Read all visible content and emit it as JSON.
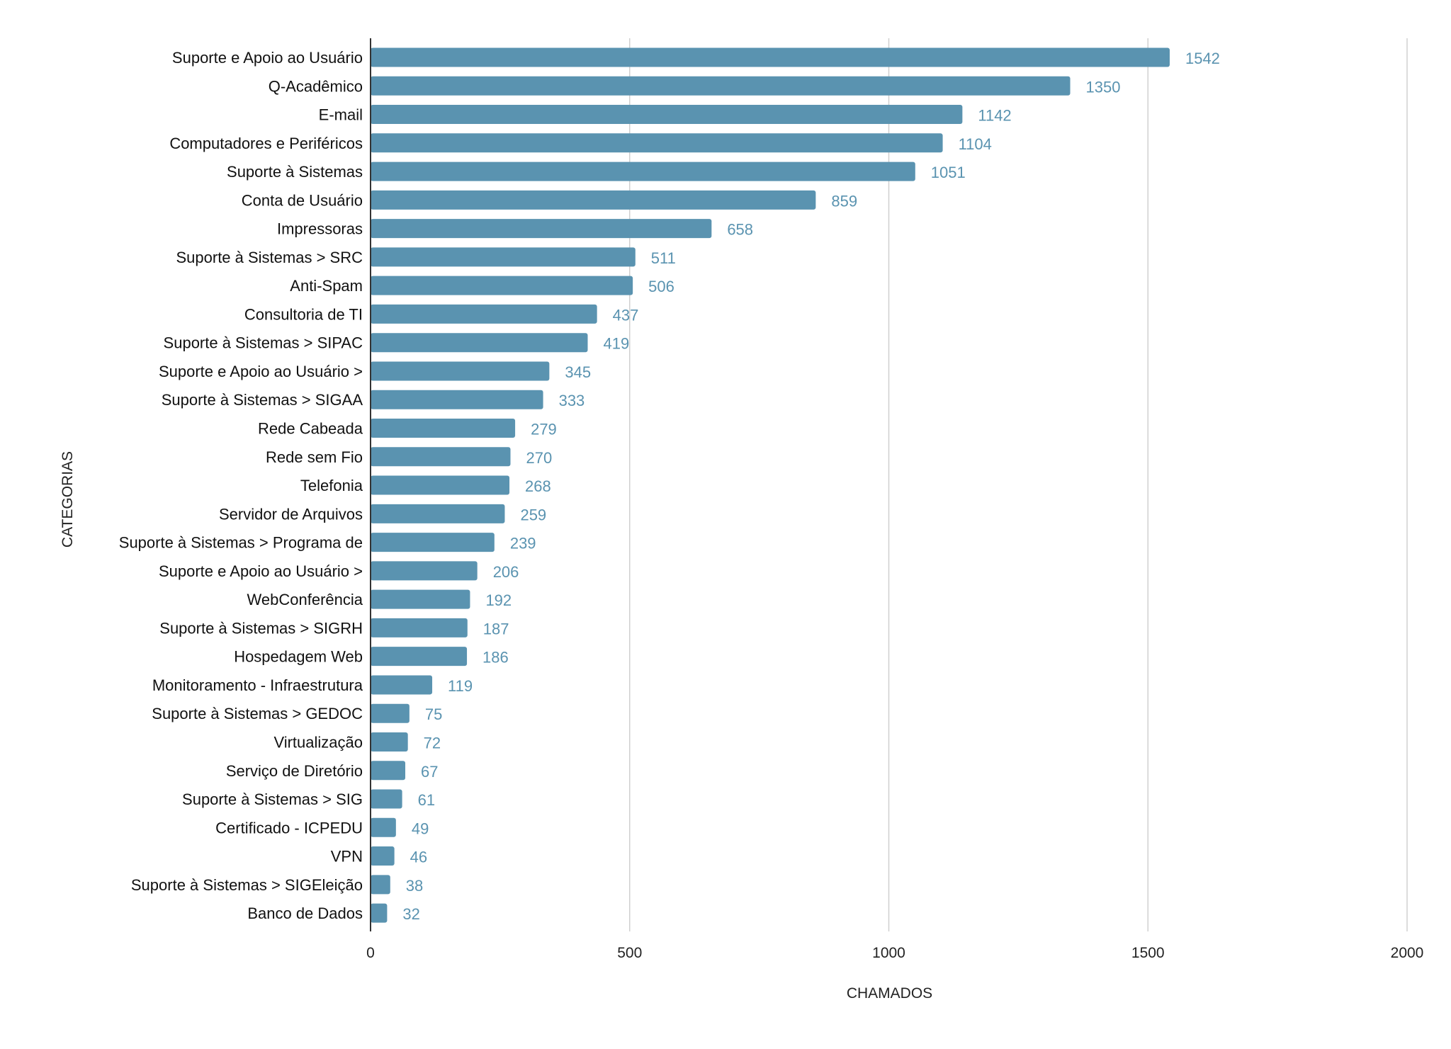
{
  "colors": {
    "bar": "#5a93b0",
    "value_label": "#5a93b0",
    "grid": "#d0d0d0",
    "axis": "#333333"
  },
  "chart_data": {
    "type": "bar",
    "orientation": "horizontal",
    "title": "",
    "xlabel": "CHAMADOS",
    "ylabel": "CATEGORIAS",
    "xlim": [
      0,
      2000
    ],
    "xticks": [
      0,
      500,
      1000,
      1500,
      2000
    ],
    "grid": true,
    "categories": [
      "Suporte e Apoio ao Usuário",
      "Q-Acadêmico",
      "E-mail",
      "Computadores e Periféricos",
      "Suporte à Sistemas",
      "Conta de Usuário",
      "Impressoras",
      "Suporte à Sistemas > SRC",
      "Anti-Spam",
      "Consultoria de TI",
      "Suporte à Sistemas > SIPAC",
      "Suporte e Apoio ao Usuário >",
      "Suporte à Sistemas > SIGAA",
      "Rede Cabeada",
      "Rede sem Fio",
      "Telefonia",
      "Servidor de Arquivos",
      "Suporte à Sistemas > Programa de",
      "Suporte e Apoio ao Usuário >",
      "WebConferência",
      "Suporte à Sistemas > SIGRH",
      "Hospedagem Web",
      "Monitoramento - Infraestrutura",
      "Suporte à Sistemas > GEDOC",
      "Virtualização",
      "Serviço de Diretório",
      "Suporte à Sistemas > SIG",
      "Certificado - ICPEDU",
      "VPN",
      "Suporte à Sistemas > SIGEleição",
      "Banco de Dados"
    ],
    "values": [
      1542,
      1350,
      1142,
      1104,
      1051,
      859,
      658,
      511,
      506,
      437,
      419,
      345,
      333,
      279,
      270,
      268,
      259,
      239,
      206,
      192,
      187,
      186,
      119,
      75,
      72,
      67,
      61,
      49,
      46,
      38,
      32
    ]
  }
}
